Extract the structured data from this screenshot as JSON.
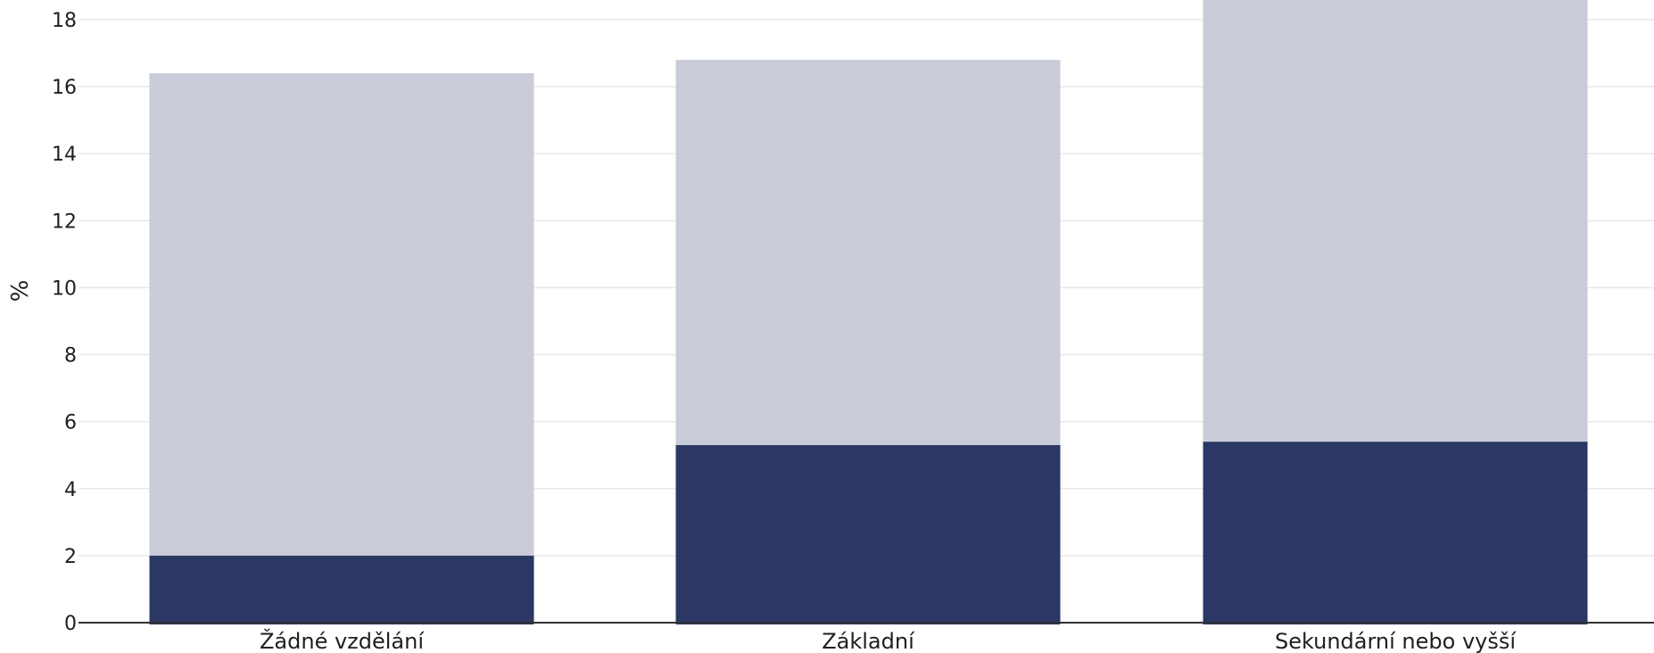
{
  "chart_data": {
    "type": "bar",
    "stacked": false,
    "overlap": true,
    "categories": [
      "Žádné vzdělání",
      "Základní",
      "Sekundární nebo vyšší"
    ],
    "series": [
      {
        "values": [
          16.4,
          16.8,
          18.6
        ],
        "color": "#cacdd9"
      },
      {
        "values": [
          2.0,
          5.3,
          5.4
        ],
        "color": "#2b3765"
      }
    ],
    "ylabel": "%",
    "ylim": [
      0,
      18
    ],
    "yticks": [
      0,
      2,
      4,
      6,
      8,
      10,
      12,
      14,
      16,
      18
    ],
    "grid": true
  }
}
